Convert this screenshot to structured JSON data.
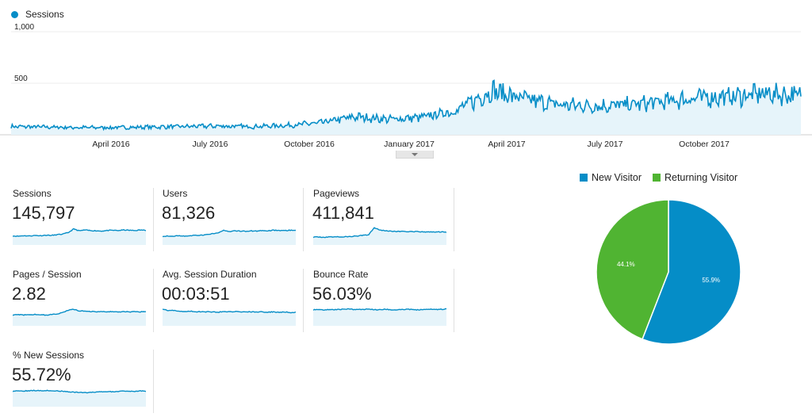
{
  "legend": {
    "label": "Sessions",
    "color": "#058dc7"
  },
  "chart_data": {
    "type": "area",
    "series": [
      {
        "name": "Sessions",
        "color": "#058dc7"
      }
    ],
    "y_ticks": [
      "1,000",
      "500"
    ],
    "ylim": [
      0,
      1000
    ],
    "x_ticks": [
      "April 2016",
      "July 2016",
      "October 2016",
      "January 2017",
      "April 2017",
      "July 2017",
      "October 2017"
    ],
    "grid": true,
    "x": [
      "2016-01-01",
      "2016-02-01",
      "2016-03-01",
      "2016-04-01",
      "2016-05-01",
      "2016-06-01",
      "2016-07-01",
      "2016-08-01",
      "2016-09-01",
      "2016-10-01",
      "2016-11-01",
      "2016-12-01",
      "2017-01-01",
      "2017-02-01",
      "2017-03-01",
      "2017-04-01",
      "2017-05-01",
      "2017-06-01",
      "2017-07-01",
      "2017-08-01",
      "2017-09-01",
      "2017-10-01",
      "2017-11-01",
      "2017-12-01"
    ],
    "values": [
      80,
      75,
      70,
      70,
      75,
      80,
      85,
      80,
      90,
      115,
      175,
      150,
      170,
      240,
      430,
      340,
      290,
      280,
      290,
      320,
      360,
      370,
      400,
      380
    ]
  },
  "metrics": [
    {
      "label": "Sessions",
      "value": "145,797",
      "spark": [
        35,
        34,
        36,
        35,
        37,
        36,
        38,
        37,
        40,
        42,
        48,
        62,
        55,
        58,
        56,
        55,
        54,
        56,
        57,
        56,
        58,
        57,
        56,
        58,
        57
      ]
    },
    {
      "label": "Users",
      "value": "81,326",
      "spark": [
        34,
        35,
        34,
        36,
        35,
        36,
        37,
        38,
        40,
        44,
        47,
        56,
        52,
        55,
        54,
        53,
        55,
        54,
        56,
        55,
        57,
        56,
        55,
        57,
        58
      ]
    },
    {
      "label": "Pageviews",
      "value": "411,841",
      "spark": [
        30,
        31,
        30,
        31,
        32,
        31,
        32,
        33,
        35,
        38,
        40,
        68,
        58,
        55,
        54,
        52,
        53,
        52,
        51,
        52,
        50,
        51,
        50,
        51,
        49
      ]
    },
    {
      "label": "Pages / Session",
      "value": "2.82",
      "spark": [
        42,
        43,
        42,
        43,
        44,
        43,
        42,
        44,
        46,
        52,
        60,
        64,
        58,
        57,
        56,
        55,
        56,
        54,
        55,
        54,
        55,
        54,
        55,
        54,
        55
      ]
    },
    {
      "label": "Avg. Session Duration",
      "value": "00:03:51",
      "spark": [
        66,
        58,
        60,
        57,
        56,
        57,
        55,
        54,
        55,
        54,
        53,
        55,
        54,
        56,
        54,
        55,
        54,
        53,
        54,
        53,
        54,
        53,
        54,
        52,
        53
      ]
    },
    {
      "label": "Bounce Rate",
      "value": "56.03%",
      "spark": [
        62,
        63,
        62,
        64,
        63,
        64,
        65,
        64,
        63,
        64,
        66,
        62,
        63,
        64,
        63,
        62,
        63,
        64,
        63,
        62,
        63,
        64,
        63,
        64,
        65
      ]
    },
    {
      "label": "% New Sessions",
      "value": "55.72%",
      "spark": [
        60,
        62,
        61,
        62,
        63,
        62,
        63,
        62,
        61,
        60,
        58,
        56,
        55,
        54,
        56,
        57,
        58,
        59,
        58,
        59,
        60,
        59,
        60,
        61,
        60
      ]
    }
  ],
  "pie": {
    "type": "pie",
    "slices": [
      {
        "name": "New Visitor",
        "value": 55.9,
        "label": "55.9%",
        "color": "#058dc7"
      },
      {
        "name": "Returning Visitor",
        "value": 44.1,
        "label": "44.1%",
        "color": "#50b432"
      }
    ]
  }
}
